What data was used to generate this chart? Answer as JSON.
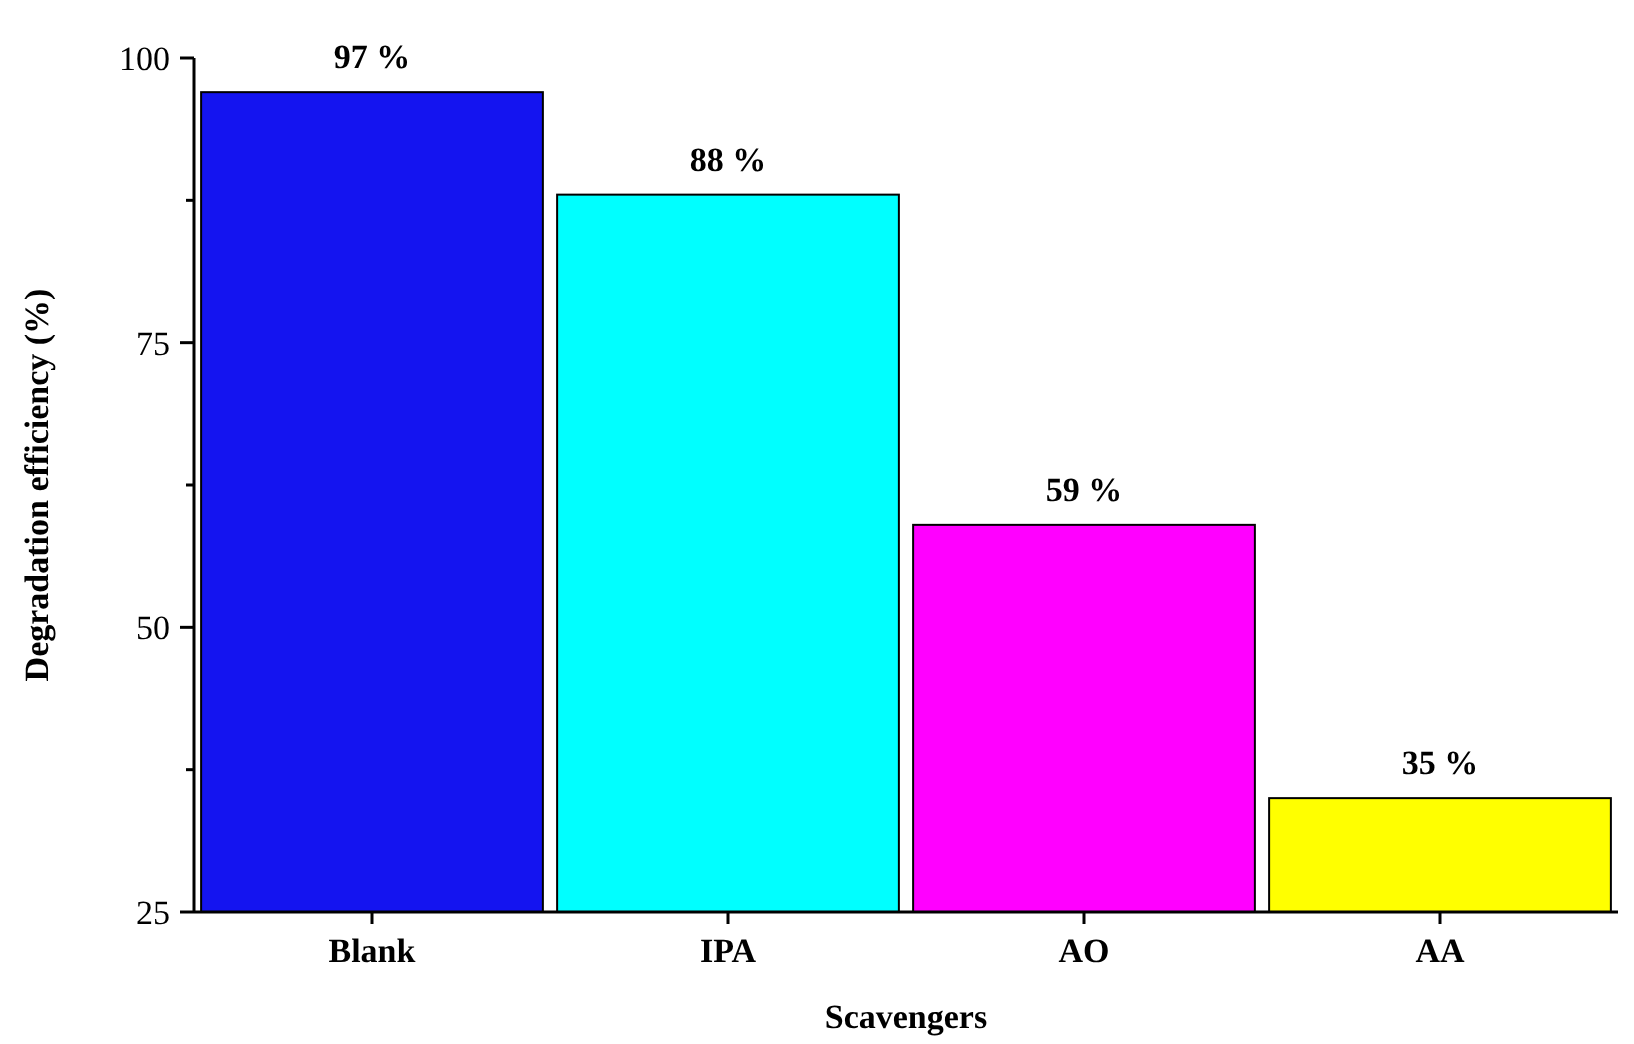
{
  "chart_data": {
    "type": "bar",
    "xlabel": "Scavengers",
    "ylabel": "Degradation efficiency (%)",
    "categories": [
      "Blank",
      "IPA",
      "AO",
      "AA"
    ],
    "values": [
      97,
      88,
      59,
      35
    ],
    "colors": [
      "#1414f0",
      "#00ffff",
      "#ff00ff",
      "#ffff00"
    ],
    "value_labels": [
      "97 %",
      "88 %",
      "59 %",
      "35 %"
    ],
    "ylim": [
      25,
      100
    ],
    "yticks": [
      25,
      50,
      75,
      100
    ],
    "grid": false
  }
}
